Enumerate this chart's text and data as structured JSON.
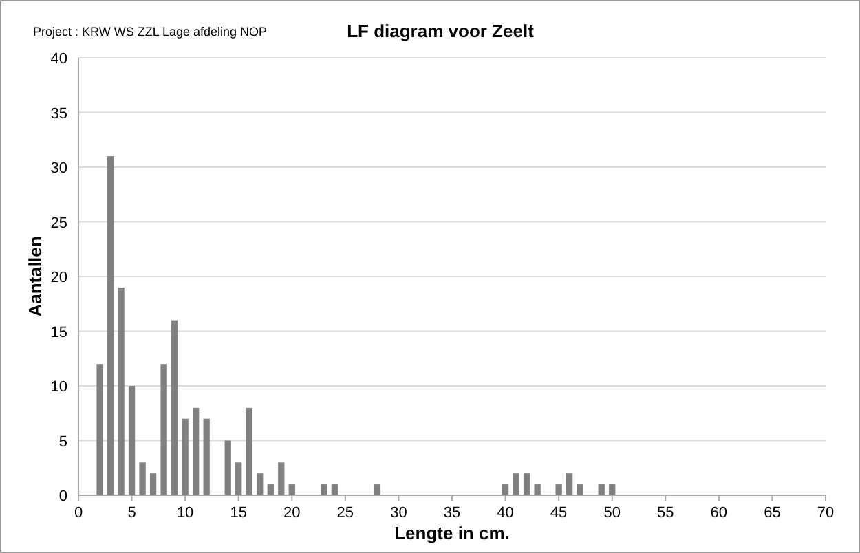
{
  "chart_data": {
    "type": "bar",
    "title": "LF diagram voor Zeelt",
    "subtitle": "Project    : KRW WS ZZL Lage afdeling NOP",
    "xlabel": "Lengte in cm.",
    "ylabel": "Aantallen",
    "x": [
      2,
      3,
      4,
      5,
      6,
      7,
      8,
      9,
      10,
      11,
      12,
      14,
      15,
      16,
      17,
      18,
      19,
      20,
      23,
      24,
      28,
      40,
      41,
      42,
      43,
      45,
      46,
      47,
      49,
      50
    ],
    "values": [
      12,
      31,
      19,
      10,
      3,
      2,
      12,
      16,
      7,
      8,
      7,
      5,
      3,
      8,
      2,
      1,
      3,
      1,
      1,
      1,
      1,
      1,
      2,
      2,
      1,
      1,
      2,
      1,
      1,
      1
    ],
    "color": "#808080",
    "xlim": [
      0,
      70
    ],
    "xticks": [
      0,
      5,
      10,
      15,
      20,
      25,
      30,
      35,
      40,
      45,
      50,
      55,
      60,
      65,
      70
    ],
    "ylim": [
      0,
      40
    ],
    "yticks": [
      0,
      5,
      10,
      15,
      20,
      25,
      30,
      35,
      40
    ],
    "grid": "y"
  }
}
